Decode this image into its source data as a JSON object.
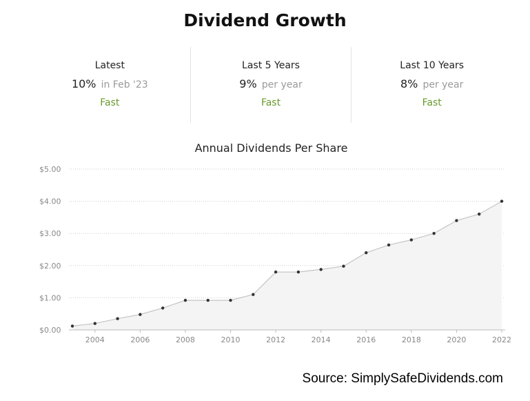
{
  "title": "Dividend Growth",
  "stats": [
    {
      "label": "Latest",
      "value": "10%",
      "note": "in Feb '23",
      "rating": "Fast"
    },
    {
      "label": "Last 5 Years",
      "value": "9%",
      "note": "per year",
      "rating": "Fast"
    },
    {
      "label": "Last 10 Years",
      "value": "8%",
      "note": "per year",
      "rating": "Fast"
    }
  ],
  "colors": {
    "rating": "#6a9a2e",
    "area": "#f4f4f4",
    "line": "#c4c4c4",
    "marker": "#333333"
  },
  "source": "Source: SimplySafeDividends.com",
  "chart_data": {
    "type": "area",
    "title": "Annual Dividends Per Share",
    "xlabel": "",
    "ylabel": "",
    "x": [
      2003,
      2004,
      2005,
      2006,
      2007,
      2008,
      2009,
      2010,
      2011,
      2012,
      2013,
      2014,
      2015,
      2016,
      2017,
      2018,
      2019,
      2020,
      2021,
      2022
    ],
    "values": [
      0.12,
      0.2,
      0.35,
      0.48,
      0.68,
      0.92,
      0.92,
      0.92,
      1.1,
      1.8,
      1.8,
      1.88,
      1.98,
      2.4,
      2.64,
      2.8,
      3.0,
      3.4,
      3.6,
      4.0
    ],
    "xticks": [
      2004,
      2006,
      2008,
      2010,
      2012,
      2014,
      2016,
      2018,
      2020,
      2022
    ],
    "yticks": [
      0,
      1,
      2,
      3,
      4,
      5
    ],
    "ytick_labels": [
      "$0.00",
      "$1.00",
      "$2.00",
      "$3.00",
      "$4.00",
      "$5.00"
    ],
    "ylim": [
      0,
      5
    ],
    "xlim": [
      2003,
      2022
    ],
    "grid": true,
    "legend": "none"
  }
}
